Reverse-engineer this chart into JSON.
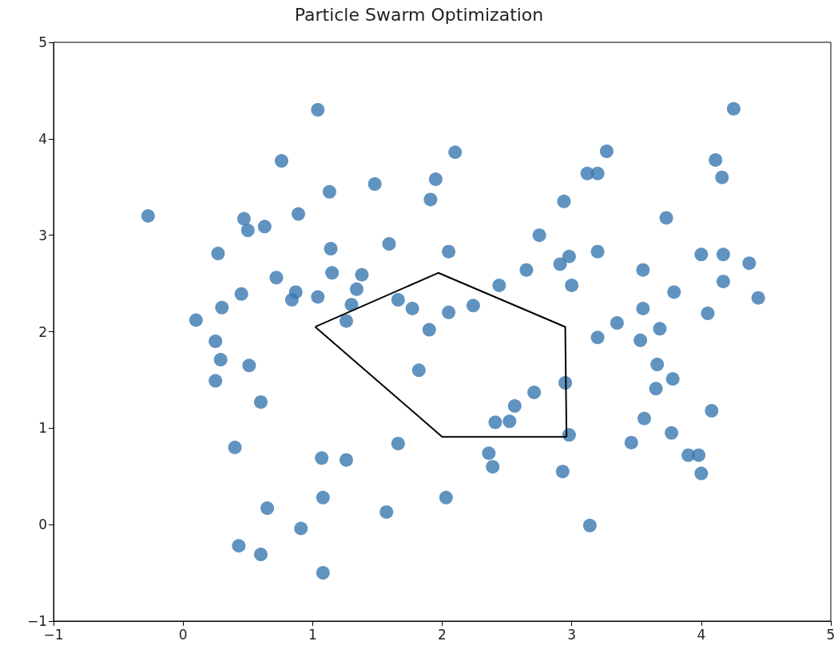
{
  "chart_data": {
    "type": "scatter",
    "title": "Particle Swarm Optimization",
    "xlim": [
      -1,
      5
    ],
    "xticks": [
      -1,
      0,
      1,
      2,
      3,
      4,
      5
    ],
    "ylim": [
      -1,
      5
    ],
    "yticks": [
      -1,
      0,
      1,
      2,
      3,
      4,
      5
    ],
    "grid": false,
    "marker": "circle",
    "series": [
      {
        "color": "#3a78b0",
        "x": [
          -0.27,
          1.04,
          0.76,
          2.1,
          4.25,
          3.27,
          3.12,
          3.2,
          1.95,
          4.11,
          4.16,
          1.13,
          1.48,
          1.91,
          0.47,
          0.5,
          0.63,
          0.89,
          2.94,
          3.73,
          0.27,
          1.59,
          1.14,
          2.05,
          2.75,
          2.91,
          2.98,
          3.2,
          4.17,
          4.0,
          4.37,
          0.72,
          1.15,
          1.38,
          2.65,
          3.55,
          4.17,
          4.44,
          0.3,
          0.45,
          0.84,
          0.87,
          1.04,
          1.34,
          1.3,
          1.66,
          1.77,
          2.24,
          2.44,
          3.0,
          3.79,
          3.55,
          0.1,
          1.26,
          1.9,
          2.05,
          3.35,
          3.68,
          4.05,
          3.2,
          3.53,
          0.25,
          0.29,
          0.51,
          1.82,
          3.66,
          3.78,
          3.65,
          0.25,
          0.6,
          2.71,
          2.95,
          2.56,
          2.41,
          2.52,
          3.56,
          4.08,
          2.98,
          3.77,
          3.46,
          1.66,
          0.4,
          2.36,
          2.39,
          1.07,
          1.26,
          3.9,
          3.98,
          4.0,
          2.93,
          1.08,
          2.03,
          0.65,
          1.57,
          0.91,
          3.14,
          0.43,
          0.6,
          1.08
        ],
        "values": [
          3.2,
          4.3,
          3.77,
          3.86,
          4.31,
          3.87,
          3.64,
          3.64,
          3.58,
          3.78,
          3.6,
          3.45,
          3.53,
          3.37,
          3.17,
          3.05,
          3.09,
          3.22,
          3.35,
          3.18,
          2.81,
          2.91,
          2.86,
          2.83,
          3.0,
          2.7,
          2.78,
          2.83,
          2.8,
          2.8,
          2.71,
          2.56,
          2.61,
          2.59,
          2.64,
          2.64,
          2.52,
          2.35,
          2.25,
          2.39,
          2.33,
          2.41,
          2.36,
          2.44,
          2.28,
          2.33,
          2.24,
          2.27,
          2.48,
          2.48,
          2.41,
          2.24,
          2.12,
          2.11,
          2.02,
          2.2,
          2.09,
          2.03,
          2.19,
          1.94,
          1.91,
          1.9,
          1.71,
          1.65,
          1.6,
          1.66,
          1.51,
          1.41,
          1.49,
          1.27,
          1.37,
          1.47,
          1.23,
          1.06,
          1.07,
          1.1,
          1.18,
          0.93,
          0.95,
          0.85,
          0.84,
          0.8,
          0.74,
          0.6,
          0.69,
          0.67,
          0.72,
          0.72,
          0.53,
          0.55,
          0.28,
          0.28,
          0.17,
          0.13,
          -0.04,
          -0.01,
          -0.22,
          -0.31,
          -0.5
        ]
      },
      {
        "type": "line",
        "color": "#000000",
        "marker": "none",
        "line_style": "solid",
        "x": [
          1.02,
          1.97,
          2.95,
          2.96
        ],
        "values": [
          2.05,
          2.61,
          2.05,
          0.91
        ]
      },
      {
        "type": "line",
        "color": "#000000",
        "marker": "none",
        "line_style": "solid",
        "x": [
          1.02,
          2.0,
          2.96
        ],
        "values": [
          2.05,
          0.91,
          0.91
        ]
      }
    ]
  }
}
